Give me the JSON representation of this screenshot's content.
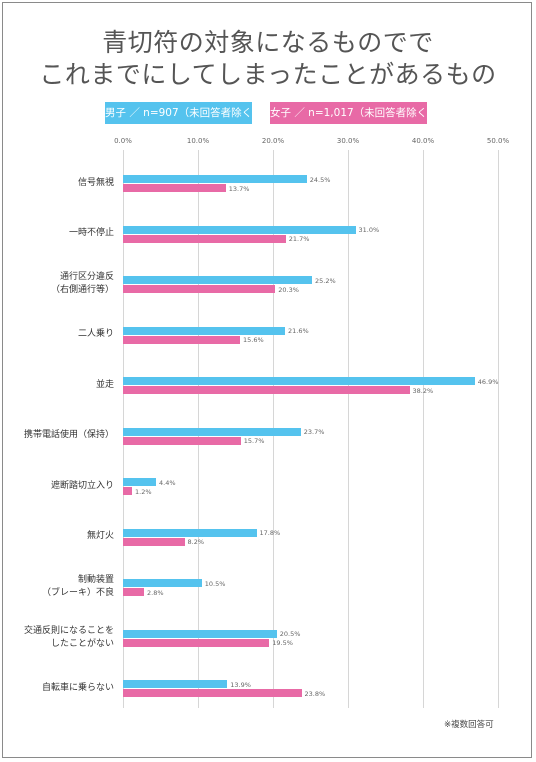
{
  "chart_data": {
    "type": "bar",
    "orientation": "horizontal",
    "title_lines": [
      "青切符の対象になるものでで",
      "これまでにしてしまったことがあるもの"
    ],
    "categories": [
      "信号無視",
      "一時不停止",
      "通行区分違反\n（右側通行等）",
      "二人乗り",
      "並走",
      "携帯電話使用（保持）",
      "遮断踏切立入り",
      "無灯火",
      "制動装置\n（ブレーキ）不良",
      "交通反則になることを\nしたことがない",
      "自転車に乗らない"
    ],
    "series": [
      {
        "name": "男子 ／ n=907（未回答者除く）",
        "color": "#55c3ee",
        "values": [
          24.5,
          31.0,
          25.2,
          21.6,
          46.9,
          23.7,
          4.4,
          17.8,
          10.5,
          20.5,
          13.9
        ],
        "value_labels": [
          "24.5%",
          "31.0%",
          "25.2%",
          "21.6%",
          "46.9%",
          "23.7%",
          "4.4%",
          "17.8%",
          "10.5%",
          "20.5%",
          "13.9%"
        ]
      },
      {
        "name": "女子 ／ n=1,017（未回答者除く）",
        "color": "#e86aa6",
        "values": [
          13.7,
          21.7,
          20.3,
          15.6,
          38.2,
          15.7,
          1.2,
          8.2,
          2.8,
          19.5,
          23.8
        ],
        "value_labels": [
          "13.7%",
          "21.7%",
          "20.3%",
          "15.6%",
          "38.2%",
          "15.7%",
          "1.2%",
          "8.2%",
          "2.8%",
          "19.5%",
          "23.8%"
        ]
      }
    ],
    "xticks": [
      "0.0%",
      "10.0%",
      "20.0%",
      "30.0%",
      "40.0%",
      "50.0%"
    ],
    "xlim": [
      0,
      50
    ],
    "grid": true,
    "legend_position": "top",
    "note": "※複数回答可"
  }
}
